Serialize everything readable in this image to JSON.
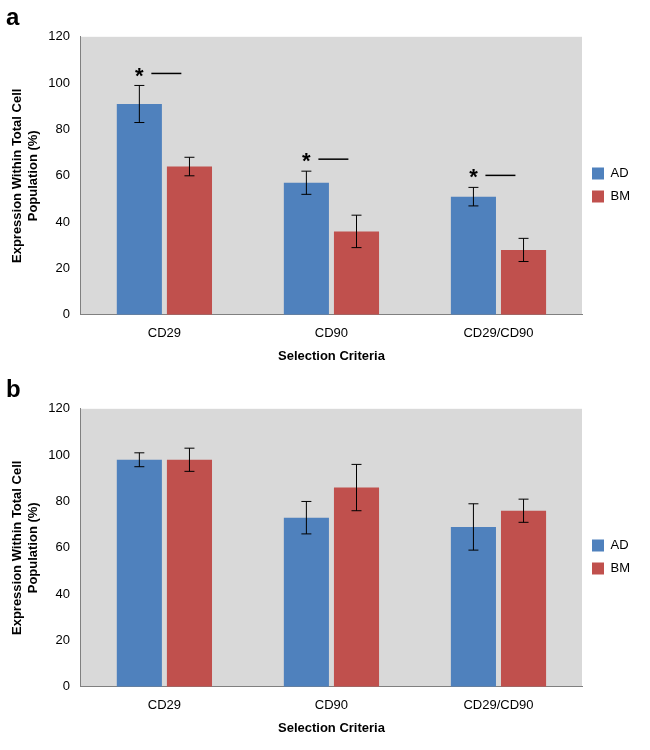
{
  "chart_data": [
    {
      "type": "bar",
      "title": "a",
      "categories": [
        "CD29",
        "CD90",
        "CD29/CD90"
      ],
      "x_label": "Selection Criteria",
      "y_label": "Expression Within Total Cell Population (%)",
      "series": [
        {
          "name": "AD",
          "color": "#4f81bd",
          "values": [
            91,
            57,
            51
          ],
          "errors": [
            8,
            5,
            4
          ]
        },
        {
          "name": "BM",
          "color": "#c0504d",
          "values": [
            64,
            36,
            28
          ],
          "errors": [
            4,
            7,
            5
          ]
        }
      ],
      "ylim": [
        0,
        120
      ],
      "yticks": [
        0,
        20,
        40,
        60,
        80,
        100,
        120
      ],
      "grid": false,
      "legend": "right",
      "annotations": [
        {
          "text": "*",
          "category": "CD29",
          "series": "AD"
        },
        {
          "text": "*",
          "category": "CD90",
          "series": "AD"
        },
        {
          "text": "*",
          "category": "CD29/CD90",
          "series": "AD"
        }
      ]
    },
    {
      "type": "bar",
      "title": "b",
      "categories": [
        "CD29",
        "CD90",
        "CD29/CD90"
      ],
      "x_label": "Selection Criteria",
      "y_label": "Expression Within Total Cell Population (%)",
      "series": [
        {
          "name": "AD",
          "color": "#4f81bd",
          "values": [
            98,
            73,
            69
          ],
          "errors": [
            3,
            7,
            10
          ]
        },
        {
          "name": "BM",
          "color": "#c0504d",
          "values": [
            98,
            86,
            76
          ],
          "errors": [
            5,
            10,
            5
          ]
        }
      ],
      "ylim": [
        0,
        120
      ],
      "yticks": [
        0,
        20,
        40,
        60,
        80,
        100,
        120
      ],
      "grid": false,
      "legend": "right"
    }
  ]
}
